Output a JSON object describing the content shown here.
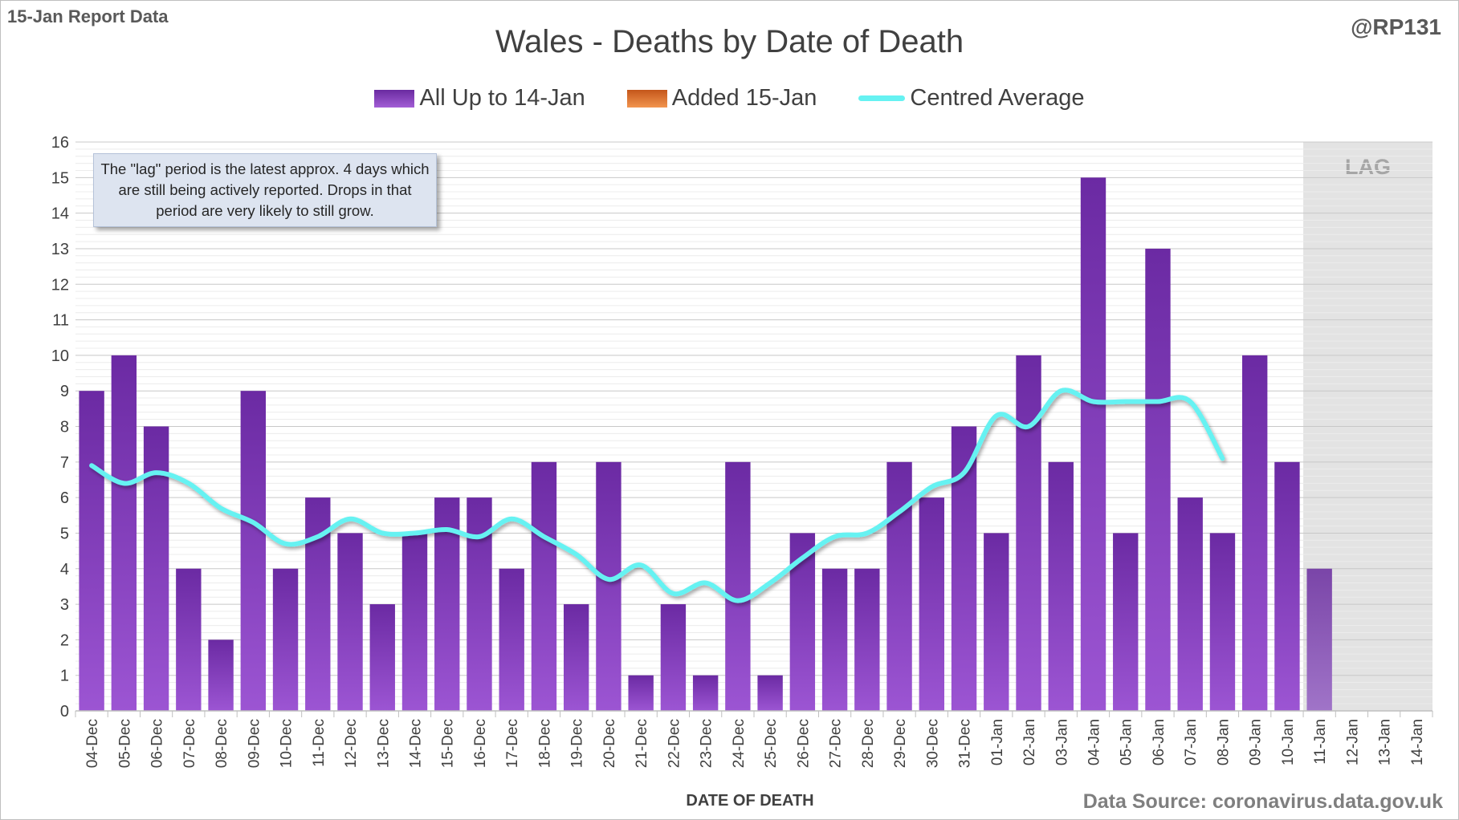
{
  "header": {
    "report_label": "15-Jan Report Data",
    "handle": "@RP131"
  },
  "footer": {
    "source": "Data Source: coronavirus.data.gov.uk"
  },
  "note": {
    "text": "The \"lag\" period is the latest approx. 4 days which are still being actively reported. Drops in that period are very likely to still grow."
  },
  "colors": {
    "bar": "#7b35b5",
    "added": "#e2701f",
    "average": "#66f2f2",
    "lag_band": "#e3e3e3"
  },
  "chart_data": {
    "type": "bar",
    "title": "Wales - Deaths by Date of Death",
    "xlabel": "DATE OF DEATH",
    "ylabel": "",
    "ylim": [
      0,
      16
    ],
    "y_ticks": [
      0,
      1,
      2,
      3,
      4,
      5,
      6,
      7,
      8,
      9,
      10,
      11,
      12,
      13,
      14,
      15,
      16
    ],
    "grid": true,
    "legend_position": "top",
    "categories": [
      "04-Dec",
      "05-Dec",
      "06-Dec",
      "07-Dec",
      "08-Dec",
      "09-Dec",
      "10-Dec",
      "11-Dec",
      "12-Dec",
      "13-Dec",
      "14-Dec",
      "15-Dec",
      "16-Dec",
      "17-Dec",
      "18-Dec",
      "19-Dec",
      "20-Dec",
      "21-Dec",
      "22-Dec",
      "23-Dec",
      "24-Dec",
      "25-Dec",
      "26-Dec",
      "27-Dec",
      "28-Dec",
      "29-Dec",
      "30-Dec",
      "31-Dec",
      "01-Jan",
      "02-Jan",
      "03-Jan",
      "04-Jan",
      "05-Jan",
      "06-Jan",
      "07-Jan",
      "08-Jan",
      "09-Jan",
      "10-Jan",
      "11-Jan",
      "12-Jan",
      "13-Jan",
      "14-Jan"
    ],
    "series": [
      {
        "name": "All Up to 14-Jan",
        "type": "bar",
        "values": [
          9,
          10,
          8,
          4,
          2,
          9,
          4,
          6,
          5,
          3,
          5,
          6,
          6,
          4,
          7,
          3,
          7,
          1,
          3,
          1,
          7,
          1,
          5,
          4,
          4,
          7,
          6,
          8,
          5,
          10,
          7,
          15,
          5,
          13,
          6,
          5,
          10,
          7,
          4,
          0,
          0,
          0
        ]
      },
      {
        "name": "Added 15-Jan",
        "type": "bar",
        "values": [
          0,
          0,
          0,
          0,
          0,
          0,
          0,
          0,
          0,
          0,
          0,
          0,
          0,
          0,
          0,
          0,
          0,
          0,
          0,
          0,
          0,
          0,
          0,
          0,
          0,
          0,
          0,
          0,
          0,
          0,
          0,
          0,
          0,
          0,
          0,
          0,
          0,
          0,
          0,
          0,
          0,
          0
        ]
      },
      {
        "name": "Centred Average",
        "type": "line",
        "values": [
          6.9,
          6.4,
          6.7,
          6.4,
          5.7,
          5.3,
          4.7,
          4.9,
          5.4,
          5.0,
          5.0,
          5.1,
          4.9,
          5.4,
          4.9,
          4.4,
          3.7,
          4.1,
          3.3,
          3.6,
          3.1,
          3.6,
          4.3,
          4.9,
          5.0,
          5.6,
          6.3,
          6.7,
          8.3,
          8.0,
          9.0,
          8.7,
          8.7,
          8.7,
          8.7,
          7.1,
          null,
          null,
          null,
          null,
          null,
          null
        ]
      }
    ],
    "lag_region": {
      "label": "LAG",
      "from": "11-Jan",
      "to": "14-Jan"
    }
  }
}
